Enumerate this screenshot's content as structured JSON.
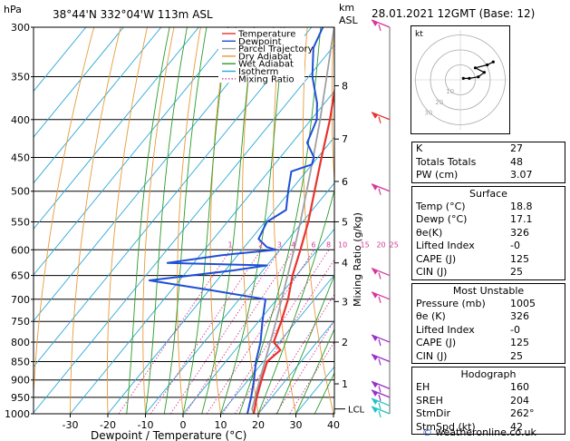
{
  "header": {
    "location": "38°44'N  332°04'W  113m  ASL",
    "datetime": "28.01.2021  12GMT  (Base: 12)",
    "hpa_label": "hPa",
    "km_label": "km",
    "asl_label": "ASL"
  },
  "chart_data": {
    "type": "line",
    "xlabel": "Dewpoint / Temperature (°C)",
    "ylabel_right": "Mixing Ratio (g/kg)",
    "x_ticks": [
      -30,
      -20,
      -10,
      0,
      10,
      20,
      30,
      40
    ],
    "xlim": [
      -35,
      40
    ],
    "pressure_levels": [
      300,
      350,
      400,
      450,
      500,
      550,
      600,
      650,
      700,
      750,
      800,
      850,
      900,
      950,
      1000
    ],
    "ylim": [
      300,
      1000
    ],
    "y_scale": "log",
    "km_ticks": [
      {
        "km": "1",
        "p": 911
      },
      {
        "km": "2",
        "p": 800
      },
      {
        "km": "3",
        "p": 705
      },
      {
        "km": "4",
        "p": 625
      },
      {
        "km": "5",
        "p": 550
      },
      {
        "km": "6",
        "p": 485
      },
      {
        "km": "7",
        "p": 425
      },
      {
        "km": "8",
        "p": 360
      }
    ],
    "lcl_label": "LCL",
    "lcl_p": 985,
    "mixing_ratio_labels": [
      "1",
      "2",
      "3",
      "4",
      "6",
      "8",
      "10",
      "15",
      "20",
      "25"
    ],
    "mixing_ratio_values": [
      1,
      2,
      3,
      4,
      6,
      8,
      10,
      15,
      20,
      25
    ],
    "legend": {
      "position": "top",
      "entries": [
        {
          "name": "Temperature",
          "color": "#e8332e"
        },
        {
          "name": "Dewpoint",
          "color": "#1f4fd6"
        },
        {
          "name": "Parcel Trajectory",
          "color": "#a0a0a0"
        },
        {
          "name": "Dry Adiabat",
          "color": "#e89a3a"
        },
        {
          "name": "Wet Adiabat",
          "color": "#2a9b2a"
        },
        {
          "name": "Isotherm",
          "color": "#2aa8d8"
        },
        {
          "name": "Mixing Ratio",
          "color": "#d6389a"
        }
      ]
    },
    "series": [
      {
        "name": "Temperature",
        "color": "#e8332e",
        "points": [
          [
            1000,
            18.8
          ],
          [
            950,
            16.0
          ],
          [
            900,
            13.5
          ],
          [
            850,
            11.0
          ],
          [
            820,
            12.0
          ],
          [
            800,
            8.5
          ],
          [
            750,
            6.0
          ],
          [
            700,
            3.0
          ],
          [
            650,
            -1.0
          ],
          [
            600,
            -4.5
          ],
          [
            550,
            -8.5
          ],
          [
            500,
            -13.5
          ],
          [
            450,
            -19.0
          ],
          [
            400,
            -25.0
          ],
          [
            350,
            -32.5
          ],
          [
            300,
            -41.0
          ]
        ]
      },
      {
        "name": "Dewpoint",
        "color": "#1f4fd6",
        "points": [
          [
            1000,
            17.1
          ],
          [
            950,
            14.5
          ],
          [
            900,
            11.5
          ],
          [
            850,
            8.0
          ],
          [
            800,
            5.0
          ],
          [
            750,
            1.0
          ],
          [
            700,
            -3.0
          ],
          [
            680,
            -20.0
          ],
          [
            660,
            -38.0
          ],
          [
            640,
            -18.0
          ],
          [
            630,
            -10.0
          ],
          [
            625,
            -37.0
          ],
          [
            610,
            -24.0
          ],
          [
            600,
            -11.0
          ],
          [
            595,
            -14.0
          ],
          [
            580,
            -18.0
          ],
          [
            550,
            -19.5
          ],
          [
            530,
            -17.0
          ],
          [
            500,
            -20.5
          ],
          [
            470,
            -24.0
          ],
          [
            460,
            -20.0
          ],
          [
            450,
            -21.0
          ],
          [
            430,
            -26.0
          ],
          [
            400,
            -28.5
          ],
          [
            380,
            -32.0
          ],
          [
            350,
            -39.0
          ],
          [
            320,
            -45.0
          ],
          [
            300,
            -47.0
          ]
        ]
      },
      {
        "name": "Parcel Trajectory",
        "color": "#a0a0a0",
        "points": [
          [
            1000,
            18.8
          ],
          [
            985,
            17.3
          ],
          [
            950,
            15.6
          ],
          [
            900,
            13.0
          ],
          [
            850,
            10.4
          ],
          [
            800,
            7.6
          ],
          [
            750,
            4.6
          ],
          [
            700,
            1.3
          ],
          [
            650,
            -2.3
          ],
          [
            600,
            -6.2
          ],
          [
            550,
            -10.6
          ],
          [
            500,
            -15.6
          ],
          [
            450,
            -21.2
          ],
          [
            400,
            -27.6
          ],
          [
            350,
            -35.2
          ],
          [
            300,
            -44.0
          ]
        ]
      }
    ],
    "winds": [
      {
        "p": 1000,
        "color": "#20c4c4"
      },
      {
        "p": 975,
        "color": "#20c4c4"
      },
      {
        "p": 950,
        "color": "#9b30c8"
      },
      {
        "p": 925,
        "color": "#9b30c8"
      },
      {
        "p": 850,
        "color": "#9b30c8"
      },
      {
        "p": 800,
        "color": "#9b30c8"
      },
      {
        "p": 700,
        "color": "#d6389a"
      },
      {
        "p": 650,
        "color": "#d6389a"
      },
      {
        "p": 500,
        "color": "#d6389a"
      },
      {
        "p": 400,
        "color": "#e8332e"
      },
      {
        "p": 300,
        "color": "#d6389a"
      }
    ]
  },
  "hodograph": {
    "unit_label": "kt",
    "ring_labels": [
      "10",
      "20",
      "30"
    ],
    "points": [
      [
        2,
        1
      ],
      [
        6,
        1
      ],
      [
        12,
        2
      ],
      [
        16,
        5
      ],
      [
        10,
        8
      ],
      [
        18,
        10
      ],
      [
        22,
        12
      ]
    ]
  },
  "indices": {
    "k": {
      "label": "K",
      "value": "27"
    },
    "tt": {
      "label": "Totals Totals",
      "value": "48"
    },
    "pw": {
      "label": "PW (cm)",
      "value": "3.07"
    }
  },
  "surface": {
    "title": "Surface",
    "temp": {
      "label": "Temp (°C)",
      "value": "18.8"
    },
    "dewp": {
      "label": "Dewp (°C)",
      "value": "17.1"
    },
    "theta": {
      "label": "θe(K)",
      "value": "326"
    },
    "li": {
      "label": "Lifted Index",
      "value": "-0"
    },
    "cape": {
      "label": "CAPE (J)",
      "value": "125"
    },
    "cin": {
      "label": "CIN (J)",
      "value": "25"
    }
  },
  "unstable": {
    "title": "Most Unstable",
    "pressure": {
      "label": "Pressure (mb)",
      "value": "1005"
    },
    "theta": {
      "label": "θe (K)",
      "value": "326"
    },
    "li": {
      "label": "Lifted Index",
      "value": "-0"
    },
    "cape": {
      "label": "CAPE (J)",
      "value": "125"
    },
    "cin": {
      "label": "CIN (J)",
      "value": "25"
    }
  },
  "hodo_box": {
    "title": "Hodograph",
    "eh": {
      "label": "EH",
      "value": "160"
    },
    "sreh": {
      "label": "SREH",
      "value": "204"
    },
    "stmdir": {
      "label": "StmDir",
      "value": "262°"
    },
    "stmspd": {
      "label": "StmSpd (kt)",
      "value": "42"
    }
  },
  "credit": {
    "prefix": "© ",
    "text": "weatheronline.co.uk"
  }
}
